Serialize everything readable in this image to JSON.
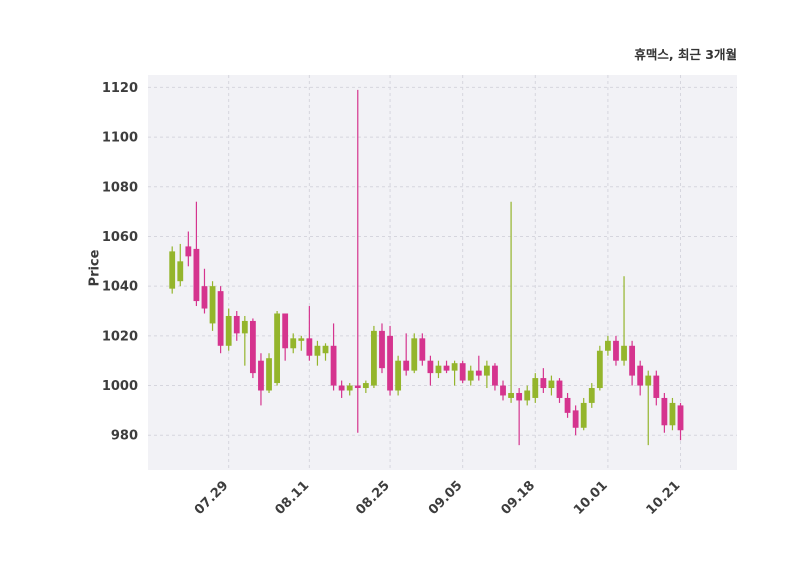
{
  "chart_data": {
    "type": "candlestick",
    "title": "휴맥스, 최근 3개월",
    "ylabel": "Price",
    "ylim": [
      966,
      1125
    ],
    "yticks": [
      980,
      1000,
      1020,
      1040,
      1060,
      1080,
      1100,
      1120
    ],
    "xticks": [
      {
        "label": "07.29",
        "index": 7
      },
      {
        "label": "08.11",
        "index": 17
      },
      {
        "label": "08.25",
        "index": 27
      },
      {
        "label": "09.05",
        "index": 36
      },
      {
        "label": "09.18",
        "index": 45
      },
      {
        "label": "10.01",
        "index": 54
      },
      {
        "label": "10.21",
        "index": 63
      }
    ],
    "grid": true,
    "legend": "none",
    "colors": {
      "up": "#94b52c",
      "down": "#d5348e",
      "grid": "#d6d6de",
      "plot_bg": "#f2f2f6",
      "figure_bg": "#ffffff",
      "tick_text": "#3d3d3d"
    },
    "candles": [
      [
        1039,
        1056,
        1037,
        1054
      ],
      [
        1042,
        1057,
        1040,
        1050
      ],
      [
        1056,
        1062,
        1048,
        1052
      ],
      [
        1055,
        1074,
        1032,
        1034
      ],
      [
        1040,
        1047,
        1029,
        1031
      ],
      [
        1025,
        1042,
        1022,
        1040
      ],
      [
        1038,
        1040,
        1013,
        1016
      ],
      [
        1016,
        1031,
        1014,
        1028
      ],
      [
        1028,
        1030,
        1018,
        1021
      ],
      [
        1021,
        1028,
        1008,
        1026
      ],
      [
        1026,
        1027,
        1003,
        1005
      ],
      [
        1010,
        1013,
        992,
        998
      ],
      [
        998,
        1013,
        997,
        1011
      ],
      [
        1001,
        1030,
        1000,
        1029
      ],
      [
        1029,
        1029,
        1010,
        1015
      ],
      [
        1015,
        1021,
        1013,
        1019
      ],
      [
        1018,
        1020,
        1014,
        1019
      ],
      [
        1019,
        1032,
        1010,
        1012
      ],
      [
        1012,
        1018,
        1008,
        1016
      ],
      [
        1013,
        1017,
        1010,
        1016
      ],
      [
        1016,
        1025,
        998,
        1000
      ],
      [
        1000,
        1002,
        995,
        998
      ],
      [
        998,
        1001,
        996,
        1000
      ],
      [
        1000,
        1119,
        981,
        999
      ],
      [
        999,
        1002,
        997,
        1001
      ],
      [
        1000,
        1024,
        999,
        1022
      ],
      [
        1022,
        1025,
        1005,
        1007
      ],
      [
        1020,
        1024,
        996,
        998
      ],
      [
        998,
        1012,
        996,
        1010
      ],
      [
        1010,
        1021,
        1004,
        1006
      ],
      [
        1006,
        1021,
        1005,
        1019
      ],
      [
        1019,
        1021,
        1008,
        1010
      ],
      [
        1010,
        1012,
        1000,
        1005
      ],
      [
        1005,
        1010,
        1003,
        1008
      ],
      [
        1008,
        1010,
        1005,
        1006
      ],
      [
        1006,
        1010,
        1000,
        1009
      ],
      [
        1009,
        1010,
        1001,
        1002
      ],
      [
        1002,
        1008,
        1000,
        1006
      ],
      [
        1006,
        1012,
        1002,
        1004
      ],
      [
        1004,
        1010,
        999,
        1008
      ],
      [
        1008,
        1009,
        998,
        1000
      ],
      [
        1000,
        1002,
        994,
        996
      ],
      [
        995,
        1074,
        993,
        997
      ],
      [
        997,
        999,
        976,
        994
      ],
      [
        994,
        1000,
        992,
        998
      ],
      [
        995,
        1005,
        993,
        1003
      ],
      [
        1003,
        1007,
        997,
        999
      ],
      [
        999,
        1004,
        996,
        1002
      ],
      [
        1002,
        1003,
        993,
        995
      ],
      [
        995,
        997,
        987,
        989
      ],
      [
        990,
        992,
        980,
        983
      ],
      [
        983,
        995,
        982,
        993
      ],
      [
        993,
        1001,
        991,
        999
      ],
      [
        999,
        1016,
        998,
        1014
      ],
      [
        1014,
        1020,
        1012,
        1018
      ],
      [
        1018,
        1020,
        1008,
        1010
      ],
      [
        1010,
        1044,
        1008,
        1016
      ],
      [
        1016,
        1018,
        1000,
        1004
      ],
      [
        1008,
        1010,
        996,
        1000
      ],
      [
        1000,
        1006,
        976,
        1004
      ],
      [
        1004,
        1006,
        992,
        995
      ],
      [
        995,
        997,
        981,
        984
      ],
      [
        984,
        995,
        982,
        993
      ],
      [
        992,
        993,
        978,
        982
      ]
    ]
  }
}
